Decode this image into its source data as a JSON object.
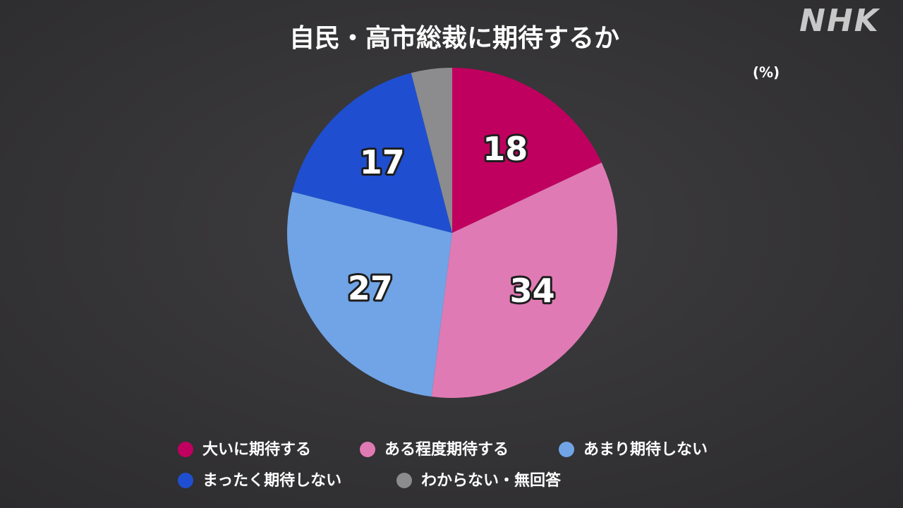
{
  "chart_data": {
    "type": "pie",
    "title": "自民・高市総裁に期待するか",
    "unit": "(%)",
    "logo": "NHK",
    "categories": [
      "大いに期待する",
      "ある程度期待する",
      "あまり期待しない",
      "まったく期待しない",
      "わからない・無回答"
    ],
    "values": [
      18,
      34,
      27,
      17,
      4
    ],
    "colors": [
      "#c0005f",
      "#e07ab4",
      "#70a4e6",
      "#1f4fd0",
      "#8c8c8e"
    ]
  }
}
